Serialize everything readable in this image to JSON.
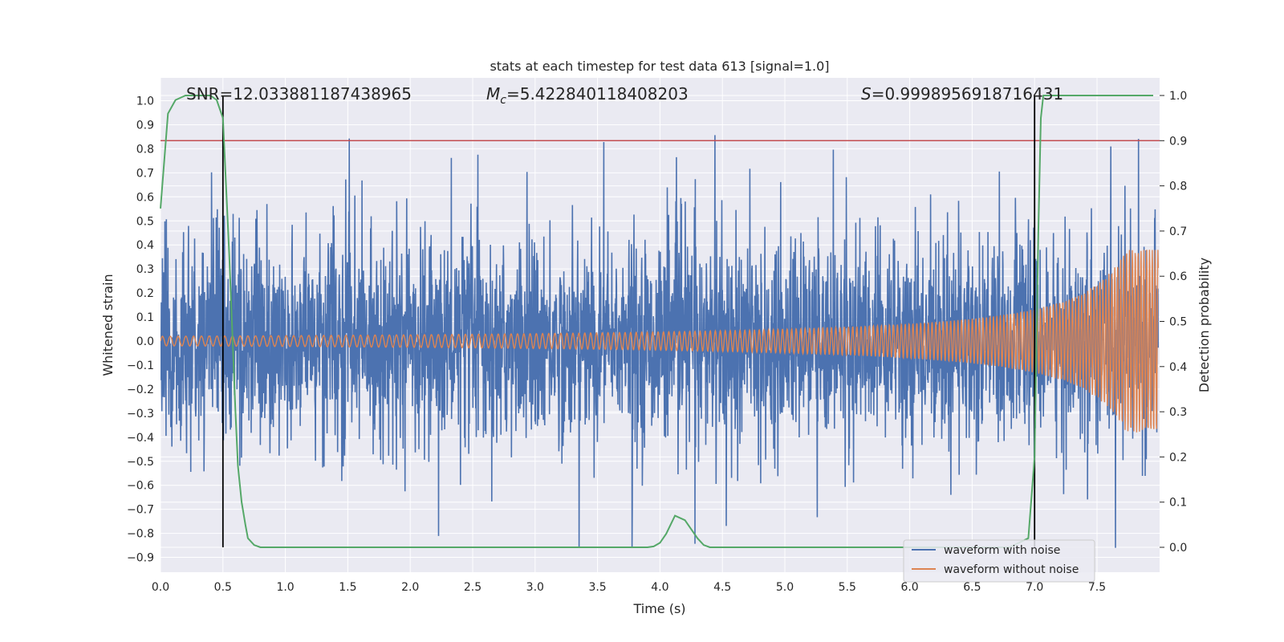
{
  "chart_data": {
    "type": "line",
    "title": "stats at each timestep for test data 613 [signal=1.0]",
    "xlabel": "Time (s)",
    "ylabel": "Whitened strain",
    "y2label": "Detection probability",
    "xlim": [
      0.0,
      8.0
    ],
    "ylim": [
      -0.95,
      1.1
    ],
    "y2lim": [
      -0.05,
      1.05
    ],
    "x_ticks": [
      "0.0",
      "0.5",
      "1.0",
      "1.5",
      "2.0",
      "2.5",
      "3.0",
      "3.5",
      "4.0",
      "4.5",
      "5.0",
      "5.5",
      "6.0",
      "6.5",
      "7.0",
      "7.5"
    ],
    "y_ticks": [
      "1.0",
      "0.9",
      "0.8",
      "0.7",
      "0.6",
      "0.5",
      "0.4",
      "0.3",
      "0.2",
      "0.1",
      "0.0",
      "-0.1",
      "-0.2",
      "-0.3",
      "-0.4",
      "-0.5",
      "-0.6",
      "-0.7",
      "-0.8",
      "-0.9"
    ],
    "y2_ticks": [
      "1.0",
      "0.9",
      "0.8",
      "0.7",
      "0.6",
      "0.5",
      "0.4",
      "0.3",
      "0.2",
      "0.1",
      "0.0"
    ],
    "annotations": {
      "snr": "SNR=12.033881187438965",
      "mc_prefix": "M",
      "mc_sub": "c",
      "mc_value": "=5.422840118408203",
      "s_prefix": "S",
      "s_value": "=0.9998956918716431"
    },
    "threshold": 0.9,
    "vertical_lines_x": [
      0.5,
      7.0
    ],
    "legend": {
      "position": "lower-right",
      "entries": [
        "waveform with noise",
        "waveform without noise"
      ]
    },
    "series": [
      {
        "name": "waveform with noise",
        "axis": "left",
        "noise_amplitude_typical": 0.4,
        "peak_max": 1.0,
        "peak_min": -0.86
      },
      {
        "name": "waveform without noise",
        "axis": "left",
        "start_amplitude": 0.02,
        "end_amplitude": 0.38
      },
      {
        "name": "detection probability",
        "axis": "right",
        "x": [
          0.0,
          0.06,
          0.12,
          0.2,
          0.3,
          0.4,
          0.45,
          0.5,
          0.55,
          0.6,
          0.62,
          0.65,
          0.68,
          0.7,
          0.75,
          0.8,
          0.9,
          1.0,
          1.5,
          2.0,
          2.5,
          3.0,
          3.5,
          3.9,
          3.95,
          4.0,
          4.05,
          4.12,
          4.2,
          4.3,
          4.35,
          4.4,
          4.5,
          5.0,
          5.5,
          6.0,
          6.5,
          6.8,
          6.95,
          7.0,
          7.03,
          7.05,
          7.07,
          7.1,
          7.3,
          7.5,
          7.8,
          7.95
        ],
        "y": [
          0.75,
          0.96,
          0.99,
          1.0,
          1.0,
          1.0,
          0.99,
          0.95,
          0.65,
          0.3,
          0.18,
          0.1,
          0.05,
          0.02,
          0.005,
          0.0,
          0.0,
          0.0,
          0.0,
          0.0,
          0.0,
          0.0,
          0.0,
          0.0,
          0.002,
          0.01,
          0.03,
          0.07,
          0.06,
          0.02,
          0.005,
          0.0,
          0.0,
          0.0,
          0.0,
          0.0,
          0.0,
          0.0,
          0.02,
          0.2,
          0.7,
          0.95,
          1.0,
          1.0,
          1.0,
          1.0,
          1.0,
          1.0
        ]
      }
    ]
  }
}
